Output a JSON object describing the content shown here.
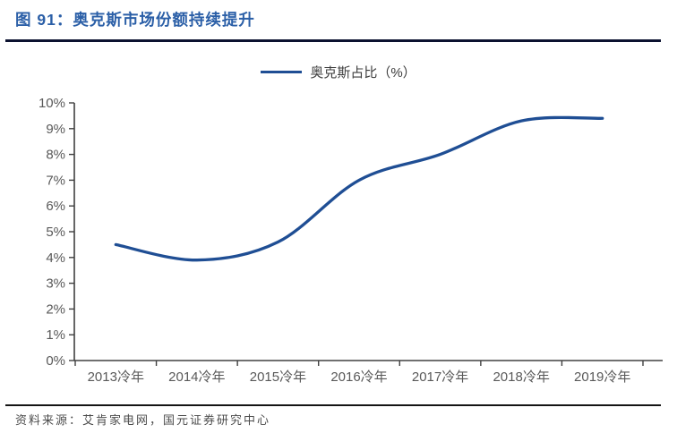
{
  "header": {
    "title": "图 91：奥克斯市场份额持续提升"
  },
  "legend": {
    "label": "奥克斯占比（%）"
  },
  "chart_data": {
    "type": "line",
    "title": "奥克斯市场份额持续提升",
    "categories": [
      "2013冷年",
      "2014冷年",
      "2015冷年",
      "2016冷年",
      "2017冷年",
      "2018冷年",
      "2019冷年"
    ],
    "series": [
      {
        "name": "奥克斯占比（%）",
        "values": [
          4.5,
          3.9,
          4.6,
          7.0,
          8.0,
          9.3,
          9.4
        ]
      }
    ],
    "xlabel": "",
    "ylabel": "",
    "ylim": [
      0,
      10
    ],
    "y_tick_labels": [
      "0%",
      "1%",
      "2%",
      "3%",
      "4%",
      "5%",
      "6%",
      "7%",
      "8%",
      "9%",
      "10%"
    ],
    "grid": false,
    "smooth": true,
    "legend_position": "top-center",
    "line_color": "#1F4E94",
    "axis_color": "#404040",
    "tick_label_color": "#595959"
  },
  "footer": {
    "source": "资料来源：艾肯家电网，国元证券研究中心"
  },
  "colors": {
    "title_blue": "#2B5FA7",
    "top_rule": "#0c1230",
    "bottom_rule": "#141414",
    "series_blue": "#1F4E94"
  }
}
